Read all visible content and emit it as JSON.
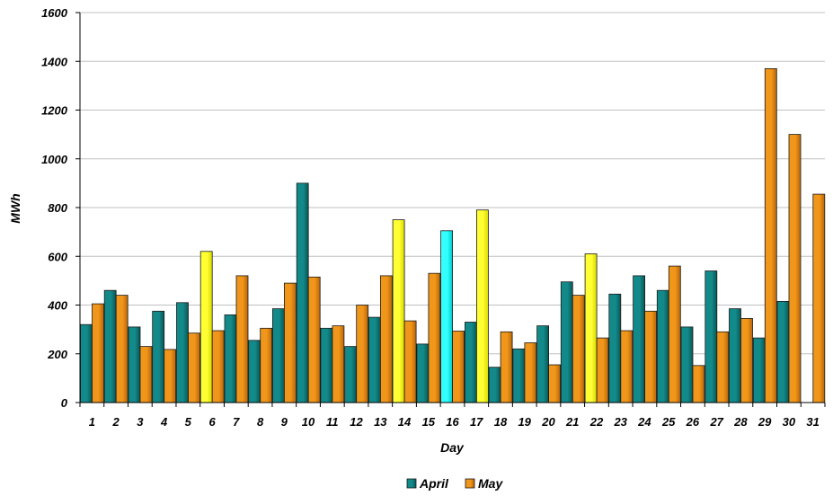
{
  "chart_data": {
    "type": "bar",
    "title": "",
    "xlabel": "Day",
    "ylabel": "MWh",
    "ylim": [
      0,
      1600
    ],
    "yticks": [
      0,
      200,
      400,
      600,
      800,
      1000,
      1200,
      1400,
      1600
    ],
    "grid": true,
    "legend_position": "bottom",
    "categories": [
      "1",
      "2",
      "3",
      "4",
      "5",
      "6",
      "7",
      "8",
      "9",
      "10",
      "11",
      "12",
      "13",
      "14",
      "15",
      "16",
      "17",
      "18",
      "19",
      "20",
      "21",
      "22",
      "23",
      "24",
      "25",
      "26",
      "27",
      "28",
      "29",
      "30",
      "31"
    ],
    "series": [
      {
        "name": "April",
        "color": "#0e7b7b",
        "values": [
          320,
          460,
          310,
          375,
          410,
          620,
          360,
          255,
          385,
          900,
          305,
          230,
          350,
          750,
          240,
          705,
          330,
          145,
          220,
          315,
          495,
          610,
          445,
          520,
          460,
          310,
          540,
          385,
          265,
          415,
          null
        ]
      },
      {
        "name": "May",
        "color": "#e08a10",
        "values": [
          405,
          440,
          230,
          218,
          285,
          295,
          520,
          305,
          490,
          515,
          315,
          400,
          520,
          335,
          530,
          293,
          790,
          290,
          245,
          155,
          440,
          265,
          295,
          375,
          560,
          152,
          290,
          345,
          1370,
          1100,
          855
        ]
      }
    ],
    "highlights": {
      "yellow_color": "#ffff00",
      "cyan_color": "#00ffff",
      "points": [
        {
          "series": "April",
          "category": "6",
          "color": "#ffff00"
        },
        {
          "series": "April",
          "category": "14",
          "color": "#ffff00"
        },
        {
          "series": "April",
          "category": "16",
          "color": "#00ffff"
        },
        {
          "series": "May",
          "category": "17",
          "color": "#ffff00"
        },
        {
          "series": "April",
          "category": "22",
          "color": "#ffff00"
        }
      ]
    }
  }
}
